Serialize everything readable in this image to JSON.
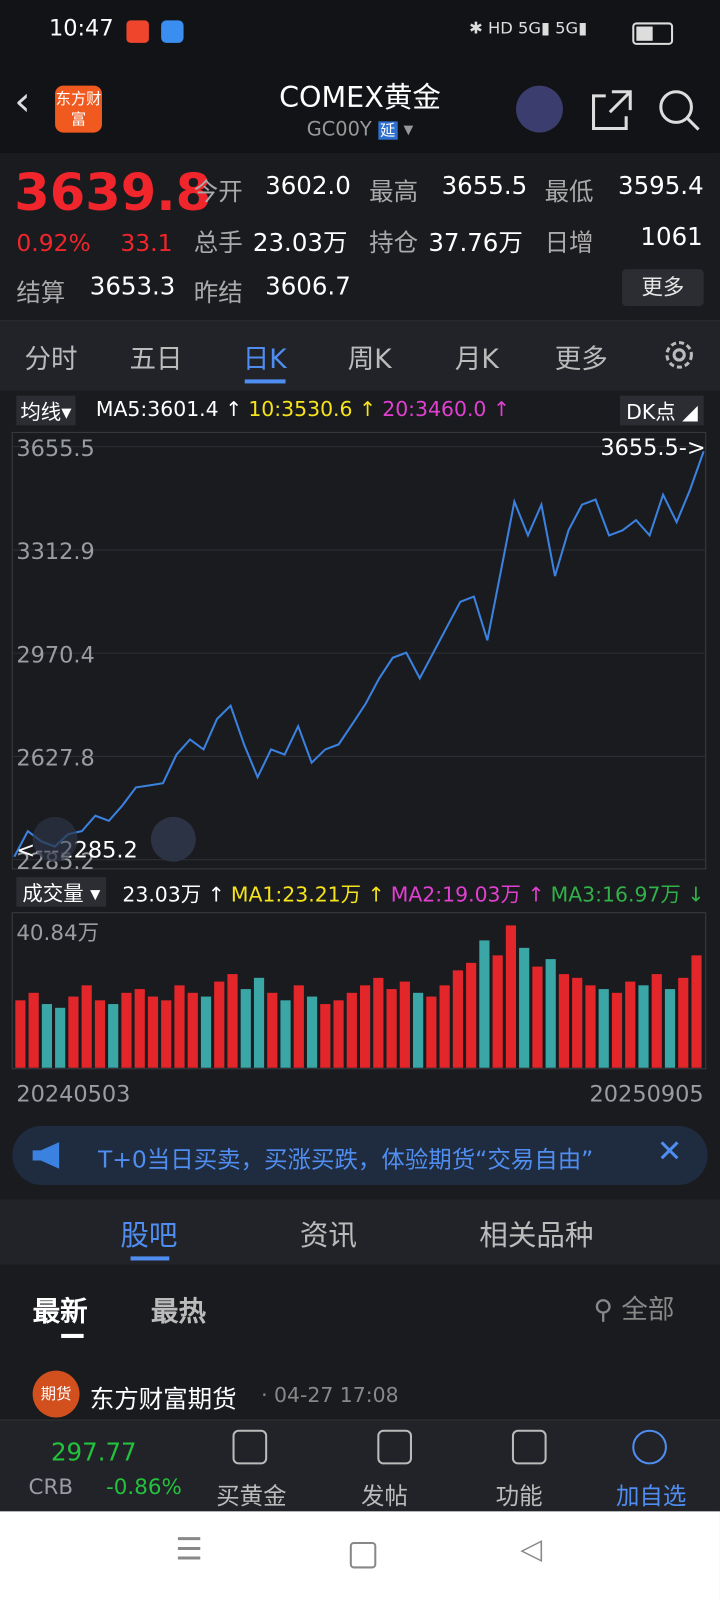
{
  "status_bar": {
    "time": "10:47"
  },
  "header": {
    "logo": "东方财富",
    "title": "COMEX黄金",
    "code": "GC00Y",
    "badge": "延"
  },
  "quote": {
    "price": "3639.8",
    "change_pct": "0.92%",
    "change": "33.1",
    "fields": [
      {
        "label": "今开",
        "value": "3602.0"
      },
      {
        "label": "最高",
        "value": "3655.5"
      },
      {
        "label": "最低",
        "value": "3595.4"
      },
      {
        "label": "总手",
        "value": "23.03万"
      },
      {
        "label": "持仓",
        "value": "37.76万"
      },
      {
        "label": "日增",
        "value": "1061"
      },
      {
        "label": "结算",
        "value": "3653.3"
      },
      {
        "label": "昨结",
        "value": "3606.7"
      }
    ],
    "more": "更多"
  },
  "period_tabs": [
    "分时",
    "五日",
    "日K",
    "周K",
    "月K",
    "更多"
  ],
  "ma_legend": {
    "selector": "均线",
    "items": [
      "MA5:3601.4 ↑",
      "10:3530.6 ↑",
      "20:3460.0 ↑"
    ],
    "dk": "DK点"
  },
  "chart_data": {
    "type": "line",
    "color": "#3b82e0",
    "ylim": [
      2285.2,
      3655.5
    ],
    "yticks": [
      3655.5,
      3312.9,
      2970.4,
      2627.8,
      2285.2
    ],
    "values": [
      2295,
      2380,
      2346,
      2329,
      2370,
      2380,
      2431,
      2414,
      2465,
      2525,
      2532,
      2539,
      2634,
      2684,
      2651,
      2752,
      2796,
      2668,
      2559,
      2651,
      2634,
      2728,
      2607,
      2651,
      2668,
      2735,
      2803,
      2887,
      2955,
      2972,
      2887,
      2972,
      3057,
      3141,
      3158,
      3013,
      3243,
      3473,
      3361,
      3463,
      3226,
      3378,
      3463,
      3480,
      3361,
      3378,
      3412,
      3361,
      3496,
      3405,
      3513,
      3640
    ],
    "max_label": "3655.5->",
    "min_label": "<---2285.2"
  },
  "volume": {
    "selector": "成交量",
    "items": [
      "23.03万 ↑",
      "MA1:23.21万 ↑",
      "MA2:19.03万 ↑",
      "MA3:16.97万 ↓"
    ],
    "max_label": "40.84万",
    "ylim": [
      0,
      40.84
    ],
    "up_color": "#e3262a",
    "down_color": "#3aa6a6",
    "values": [
      18,
      20,
      17,
      16,
      19,
      22,
      18,
      17,
      20,
      21,
      19,
      18,
      22,
      20,
      19,
      23,
      25,
      21,
      24,
      20,
      18,
      22,
      19,
      17,
      18,
      20,
      22,
      24,
      21,
      23,
      20,
      19,
      22,
      26,
      28,
      34,
      30,
      38,
      32,
      27,
      29,
      25,
      24,
      22,
      21,
      20,
      23,
      22,
      25,
      21,
      24,
      30
    ],
    "x_labels": [
      "20240503",
      "20250905"
    ]
  },
  "banner": "T+0当日买卖，买涨买跌，体验期货“交易自由”",
  "content_tabs": [
    "股吧",
    "资讯",
    "相关品种"
  ],
  "feed_tabs": [
    "最新",
    "最热"
  ],
  "filter": "全部",
  "post": {
    "avatar": "期货",
    "author": "东方财富期货",
    "meta": "· 04-27 17:08"
  },
  "bottom_bar": {
    "ticker_value": "297.77",
    "ticker_name": "CRB",
    "ticker_change": "-0.86%",
    "items": [
      "买黄金",
      "发帖",
      "功能",
      "加自选"
    ]
  }
}
